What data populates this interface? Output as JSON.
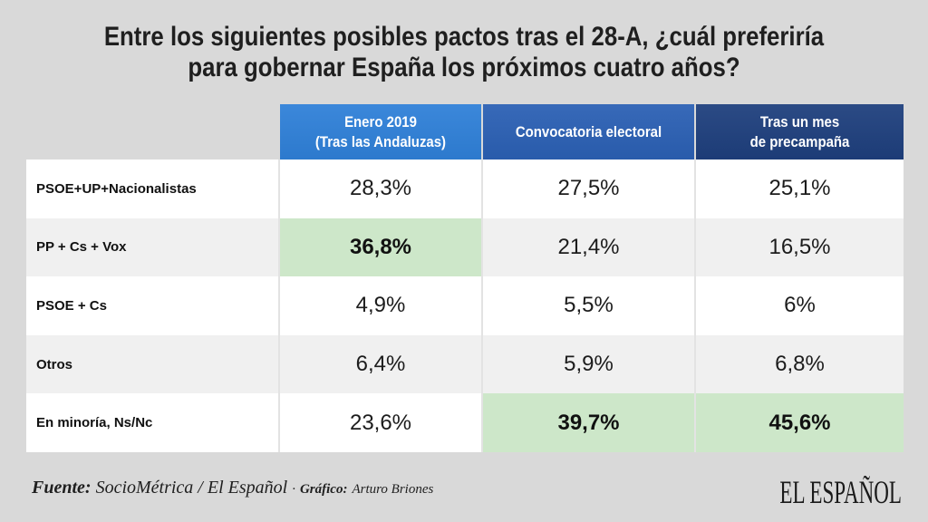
{
  "chart_data": {
    "type": "table",
    "title": {
      "line_1": "Entre los siguientes posibles pactos tras el 28-A, ¿cuál preferiría",
      "line_2": "para gobernar España los próximos cuatro años?"
    },
    "columns": [
      {
        "lines": [
          "Enero 2019",
          "(Tras las Andaluzas)"
        ],
        "color": "#2f80d8"
      },
      {
        "lines": [
          "Convocatoria electoral"
        ],
        "color": "#2b60b4"
      },
      {
        "lines": [
          "Tras un mes",
          "de precampaña"
        ],
        "color": "#1e3f7d"
      }
    ],
    "rows": [
      {
        "label": "PSOE+UP+Nacionalistas",
        "values": [
          "28,3%",
          "27,5%",
          "25,1%"
        ],
        "highlight": [
          false,
          false,
          false
        ]
      },
      {
        "label": "PP + Cs + Vox",
        "values": [
          "36,8%",
          "21,4%",
          "16,5%"
        ],
        "highlight": [
          true,
          false,
          false
        ]
      },
      {
        "label": "PSOE + Cs",
        "values": [
          "4,9%",
          "5,5%",
          "6%"
        ],
        "highlight": [
          false,
          false,
          false
        ]
      },
      {
        "label": "Otros",
        "values": [
          "6,4%",
          "5,9%",
          "6,8%"
        ],
        "highlight": [
          false,
          false,
          false
        ]
      },
      {
        "label": "En minoría, Ns/Nc",
        "values": [
          "23,6%",
          "39,7%",
          "45,6%"
        ],
        "highlight": [
          false,
          true,
          true
        ]
      }
    ]
  },
  "footer": {
    "source_label": "Fuente:",
    "source": "SocioMétrica / El Español",
    "separator": "·",
    "credit_label": "Gráfico:",
    "credit": "Arturo Briones"
  },
  "branding": {
    "logo": "EL ESPAÑOL"
  },
  "colors": {
    "background": "#d9d9d9",
    "title_text": "#1f1f1f",
    "row_odd": "#ffffff",
    "row_even": "#f0f0f0",
    "highlight": "#cde7c9",
    "header_text": "#ffffff"
  }
}
